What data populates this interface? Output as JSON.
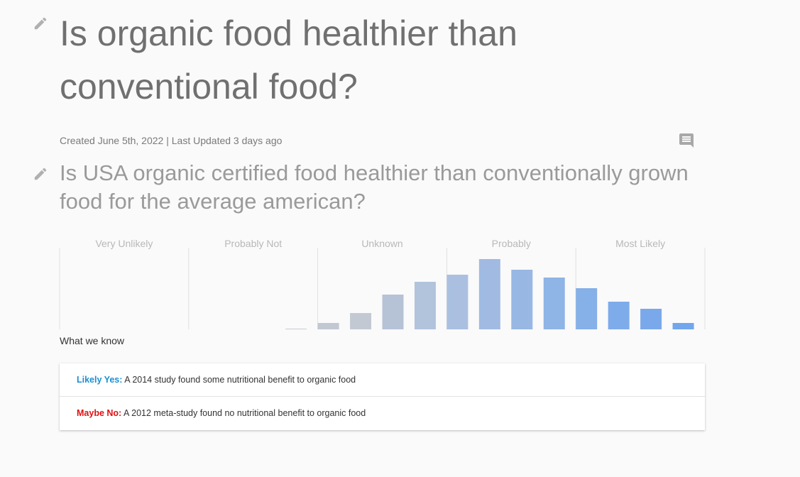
{
  "header": {
    "title": "Is organic food healthier than conventional food?",
    "meta": "Created June 5th, 2022 | Last Updated 3 days ago"
  },
  "question": "Is USA organic certified food healthier than conventionally grown food for the average american?",
  "chart_data": {
    "type": "bar",
    "groups": [
      "Very Unlikely",
      "Probably Not",
      "Unknown",
      "Probably",
      "Most Likely"
    ],
    "values": [
      0,
      0,
      0,
      0,
      0,
      0,
      0,
      1,
      9,
      23,
      49,
      67,
      77,
      99,
      84,
      73,
      58,
      39,
      29,
      9
    ],
    "colors": [
      "#c8ccd4",
      "#c8ccd4",
      "#c8ccd4",
      "#c8ccd4",
      "#c8ccd4",
      "#c8ccd4",
      "#c8ccd4",
      "#c4cad4",
      "#c2c8d2",
      "#c3c9d3",
      "#b6c2d6",
      "#b2c3dc",
      "#abc0e0",
      "#a0bae2",
      "#98b7e3",
      "#8fb4e6",
      "#85b0e8",
      "#7eaceb",
      "#7aa9eb",
      "#73a6ec"
    ],
    "ylim": [
      0,
      115
    ]
  },
  "section": "What we know",
  "items": [
    {
      "label": "Likely Yes:",
      "text": "A 2014 study found some nutritional benefit to organic food"
    },
    {
      "label": "Maybe No:",
      "text": "A 2012 meta-study found no nutritional benefit to organic food"
    }
  ]
}
